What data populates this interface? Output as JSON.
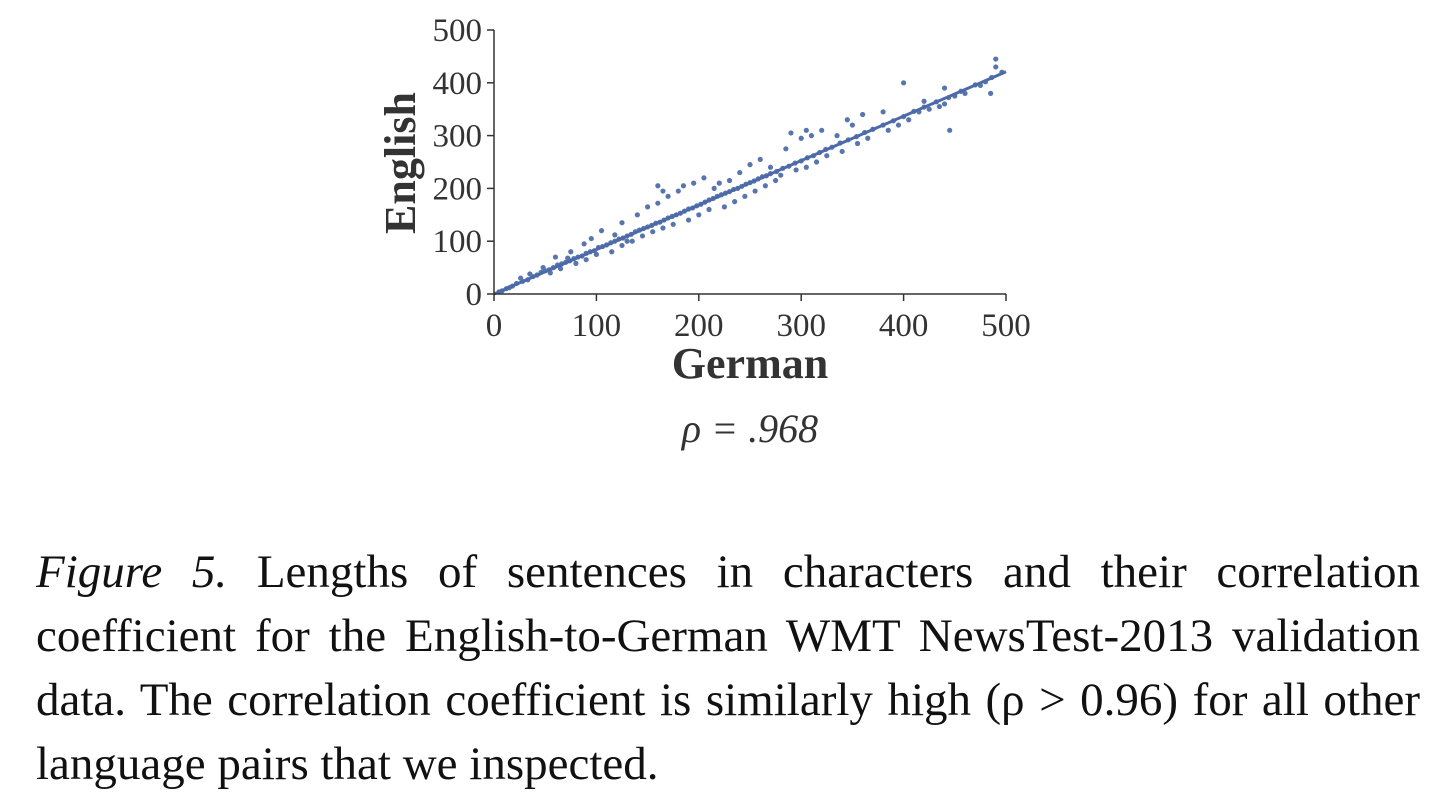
{
  "chart_data": {
    "type": "scatter",
    "xlabel": "German",
    "ylabel": "English",
    "xlim": [
      0,
      500
    ],
    "ylim": [
      0,
      500
    ],
    "x_ticks": [
      "0",
      "100",
      "200",
      "300",
      "400",
      "500"
    ],
    "y_ticks": [
      "0",
      "100",
      "200",
      "300",
      "400",
      "500"
    ],
    "annotation": "ρ = .968",
    "point_color": "#5975ad",
    "line_color": "#4c6aa8",
    "regression_line": {
      "x": [
        0,
        500
      ],
      "y": [
        0,
        421
      ]
    },
    "grid": false,
    "points": [
      [
        12,
        10
      ],
      [
        18,
        15
      ],
      [
        22,
        20
      ],
      [
        28,
        24
      ],
      [
        33,
        27
      ],
      [
        38,
        33
      ],
      [
        42,
        36
      ],
      [
        46,
        41
      ],
      [
        50,
        44
      ],
      [
        54,
        46
      ],
      [
        58,
        50
      ],
      [
        62,
        55
      ],
      [
        66,
        57
      ],
      [
        70,
        60
      ],
      [
        74,
        63
      ],
      [
        78,
        67
      ],
      [
        82,
        70
      ],
      [
        86,
        72
      ],
      [
        90,
        77
      ],
      [
        94,
        80
      ],
      [
        98,
        82
      ],
      [
        102,
        88
      ],
      [
        106,
        90
      ],
      [
        110,
        93
      ],
      [
        114,
        97
      ],
      [
        118,
        100
      ],
      [
        122,
        104
      ],
      [
        126,
        106
      ],
      [
        130,
        110
      ],
      [
        134,
        113
      ],
      [
        138,
        118
      ],
      [
        142,
        121
      ],
      [
        146,
        124
      ],
      [
        150,
        127
      ],
      [
        154,
        130
      ],
      [
        158,
        134
      ],
      [
        162,
        136
      ],
      [
        166,
        140
      ],
      [
        170,
        144
      ],
      [
        174,
        147
      ],
      [
        178,
        150
      ],
      [
        182,
        153
      ],
      [
        186,
        157
      ],
      [
        190,
        161
      ],
      [
        194,
        163
      ],
      [
        198,
        167
      ],
      [
        202,
        170
      ],
      [
        206,
        174
      ],
      [
        210,
        178
      ],
      [
        214,
        181
      ],
      [
        218,
        185
      ],
      [
        222,
        188
      ],
      [
        226,
        191
      ],
      [
        230,
        194
      ],
      [
        234,
        198
      ],
      [
        238,
        200
      ],
      [
        242,
        204
      ],
      [
        246,
        208
      ],
      [
        250,
        211
      ],
      [
        254,
        214
      ],
      [
        258,
        218
      ],
      [
        262,
        222
      ],
      [
        266,
        224
      ],
      [
        270,
        228
      ],
      [
        276,
        232
      ],
      [
        282,
        238
      ],
      [
        288,
        242
      ],
      [
        294,
        248
      ],
      [
        300,
        252
      ],
      [
        306,
        258
      ],
      [
        312,
        262
      ],
      [
        318,
        268
      ],
      [
        324,
        274
      ],
      [
        330,
        278
      ],
      [
        338,
        286
      ],
      [
        346,
        292
      ],
      [
        354,
        298
      ],
      [
        362,
        306
      ],
      [
        370,
        312
      ],
      [
        380,
        320
      ],
      [
        390,
        328
      ],
      [
        400,
        336
      ],
      [
        410,
        346
      ],
      [
        420,
        354
      ],
      [
        432,
        364
      ],
      [
        444,
        372
      ],
      [
        456,
        384
      ],
      [
        470,
        396
      ],
      [
        486,
        410
      ],
      [
        496,
        420
      ],
      [
        60,
        70
      ],
      [
        75,
        80
      ],
      [
        95,
        105
      ],
      [
        105,
        120
      ],
      [
        125,
        135
      ],
      [
        140,
        150
      ],
      [
        150,
        165
      ],
      [
        160,
        172
      ],
      [
        165,
        195
      ],
      [
        170,
        185
      ],
      [
        180,
        195
      ],
      [
        185,
        205
      ],
      [
        195,
        210
      ],
      [
        205,
        220
      ],
      [
        215,
        200
      ],
      [
        220,
        210
      ],
      [
        240,
        230
      ],
      [
        250,
        245
      ],
      [
        260,
        255
      ],
      [
        270,
        240
      ],
      [
        285,
        275
      ],
      [
        300,
        295
      ],
      [
        310,
        300
      ],
      [
        320,
        310
      ],
      [
        335,
        300
      ],
      [
        350,
        320
      ],
      [
        360,
        340
      ],
      [
        380,
        345
      ],
      [
        400,
        400
      ],
      [
        420,
        365
      ],
      [
        440,
        390
      ],
      [
        445,
        310
      ],
      [
        490,
        445
      ],
      [
        485,
        380
      ],
      [
        490,
        430
      ],
      [
        345,
        330
      ],
      [
        305,
        310
      ],
      [
        290,
        305
      ],
      [
        230,
        215
      ],
      [
        160,
        205
      ],
      [
        55,
        40
      ],
      [
        65,
        48
      ],
      [
        80,
        58
      ],
      [
        90,
        65
      ],
      [
        100,
        75
      ],
      [
        115,
        80
      ],
      [
        125,
        92
      ],
      [
        135,
        100
      ],
      [
        145,
        110
      ],
      [
        155,
        118
      ],
      [
        165,
        125
      ],
      [
        175,
        132
      ],
      [
        190,
        140
      ],
      [
        200,
        150
      ],
      [
        210,
        160
      ],
      [
        225,
        165
      ],
      [
        235,
        175
      ],
      [
        245,
        185
      ],
      [
        255,
        195
      ],
      [
        265,
        205
      ],
      [
        275,
        215
      ],
      [
        280,
        225
      ],
      [
        295,
        235
      ],
      [
        305,
        240
      ],
      [
        315,
        250
      ],
      [
        325,
        262
      ],
      [
        340,
        270
      ],
      [
        355,
        285
      ],
      [
        365,
        295
      ],
      [
        385,
        310
      ],
      [
        395,
        320
      ],
      [
        405,
        330
      ],
      [
        415,
        345
      ],
      [
        425,
        350
      ],
      [
        435,
        355
      ],
      [
        450,
        375
      ],
      [
        460,
        380
      ],
      [
        475,
        395
      ],
      [
        480,
        402
      ],
      [
        440,
        360
      ],
      [
        130,
        100
      ],
      [
        118,
        112
      ],
      [
        88,
        95
      ],
      [
        72,
        68
      ],
      [
        48,
        50
      ],
      [
        35,
        38
      ],
      [
        26,
        30
      ],
      [
        15,
        12
      ],
      [
        8,
        6
      ],
      [
        5,
        4
      ]
    ]
  },
  "caption": {
    "label": "Figure 5.",
    "text": " Lengths of sentences in characters and their correlation coefficient for the English-to-German WMT NewsTest-2013 validation data.  The correlation coefficient is similarly high (ρ > 0.96) for all other language pairs that we inspected."
  }
}
